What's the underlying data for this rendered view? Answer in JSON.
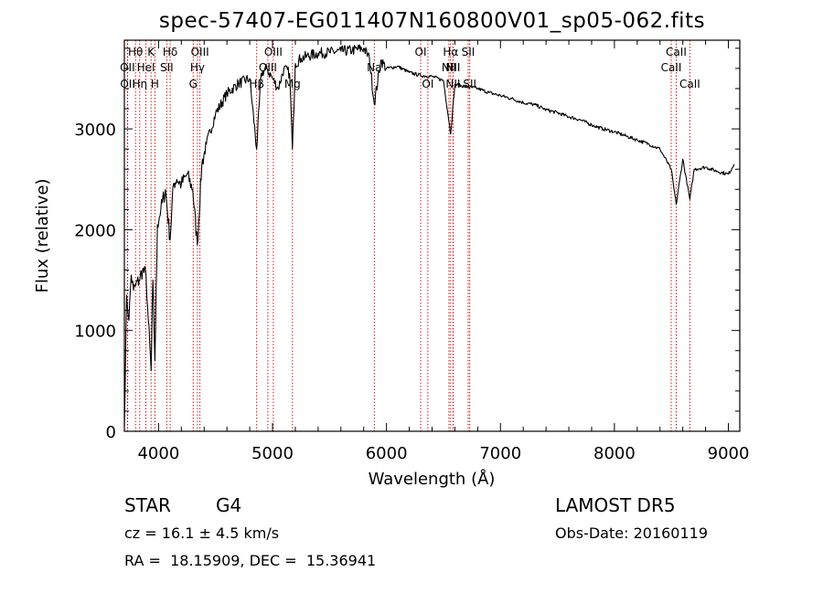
{
  "figure": {
    "title": "spec-57407-EG011407N160800V01_sp05-062.fits",
    "object_class": "STAR",
    "subclass": "G4",
    "survey": "LAMOST DR5",
    "redshift": "cz = 16.1 ± 4.5 km/s",
    "obs_date": "Obs-Date: 20160119",
    "coords": "RA =  18.15909, DEC =  15.36941"
  },
  "chart_data": {
    "type": "line",
    "title": "spec-57407-EG011407N160800V01_sp05-062.fits",
    "xlabel": "Wavelength (Å)",
    "ylabel": "Flux (relative)",
    "xlim": [
      3700,
      9100
    ],
    "ylim": [
      0,
      3880
    ],
    "xticks": [
      4000,
      5000,
      6000,
      7000,
      8000,
      9000
    ],
    "yticks": [
      0,
      1000,
      2000,
      3000
    ],
    "grid": false,
    "line_color": "#000000",
    "marker_color": "#cc0000",
    "series": [
      {
        "x": [
          3700,
          3720,
          3740,
          3760,
          3780,
          3800,
          3830,
          3860,
          3890,
          3910,
          3935,
          3950,
          3968,
          3990,
          4020,
          4060,
          4101,
          4130,
          4160,
          4200,
          4250,
          4300,
          4340,
          4380,
          4420,
          4500,
          4600,
          4700,
          4800,
          4861,
          4900,
          4950,
          5000,
          5050,
          5100,
          5150,
          5175,
          5200,
          5250,
          5300,
          5400,
          5500,
          5600,
          5700,
          5800,
          5850,
          5893,
          5950,
          6000,
          6100,
          6200,
          6300,
          6400,
          6500,
          6563,
          6600,
          6700,
          6800,
          6900,
          7000,
          7100,
          7200,
          7300,
          7400,
          7500,
          7600,
          7700,
          7800,
          7900,
          8000,
          8100,
          8200,
          8300,
          8400,
          8498,
          8542,
          8600,
          8662,
          8700,
          8800,
          8900,
          9000,
          9050
        ],
        "y": [
          50,
          1350,
          1100,
          1550,
          1400,
          1450,
          1500,
          1600,
          1550,
          1100,
          600,
          1500,
          700,
          2050,
          2200,
          2400,
          1900,
          2450,
          2500,
          2450,
          2550,
          2400,
          1850,
          2650,
          2850,
          3150,
          3350,
          3450,
          3500,
          2800,
          3550,
          3600,
          3500,
          3400,
          3600,
          3550,
          2800,
          3650,
          3700,
          3720,
          3750,
          3760,
          3770,
          3780,
          3800,
          3700,
          3250,
          3680,
          3600,
          3620,
          3560,
          3530,
          3520,
          3480,
          2950,
          3440,
          3420,
          3400,
          3360,
          3330,
          3300,
          3260,
          3240,
          3190,
          3160,
          3120,
          3090,
          3040,
          3000,
          2970,
          2930,
          2890,
          2850,
          2800,
          2600,
          2250,
          2700,
          2300,
          2600,
          2620,
          2580,
          2550,
          2650
        ]
      }
    ],
    "lines": [
      {
        "label": "Hθ",
        "x": 3798,
        "row": 0
      },
      {
        "label": "K",
        "x": 3934,
        "row": 0
      },
      {
        "label": "Hδ",
        "x": 4102,
        "row": 0
      },
      {
        "label": "OIII",
        "x": 4363,
        "row": 0
      },
      {
        "label": "OIII",
        "x": 5007,
        "row": 0
      },
      {
        "label": "OI",
        "x": 6300,
        "row": 0
      },
      {
        "label": "Hα",
        "x": 6563,
        "row": 0
      },
      {
        "label": "SII",
        "x": 6717,
        "row": 0
      },
      {
        "label": "CaII",
        "x": 8542,
        "row": 0
      },
      {
        "label": "OII",
        "x": 3727,
        "row": 1
      },
      {
        "label": "HeI",
        "x": 3889,
        "row": 1
      },
      {
        "label": "SII",
        "x": 4072,
        "row": 1
      },
      {
        "label": "Hγ",
        "x": 4341,
        "row": 1
      },
      {
        "label": "OIII",
        "x": 4959,
        "row": 1
      },
      {
        "label": "Na",
        "x": 5893,
        "row": 1
      },
      {
        "label": "NII",
        "x": 6548,
        "row": 1
      },
      {
        "label": "NII",
        "x": 6584,
        "row": 1
      },
      {
        "label": "CaII",
        "x": 8498,
        "row": 1
      },
      {
        "label": "OII",
        "x": 3729,
        "row": 2
      },
      {
        "label": "Hη",
        "x": 3835,
        "row": 2
      },
      {
        "label": "H",
        "x": 3968,
        "row": 2
      },
      {
        "label": "G",
        "x": 4304,
        "row": 2
      },
      {
        "label": "Hβ",
        "x": 4861,
        "row": 2
      },
      {
        "label": "Mg",
        "x": 5175,
        "row": 2
      },
      {
        "label": "OI",
        "x": 6363,
        "row": 2
      },
      {
        "label": "NII",
        "x": 6584,
        "row": 2
      },
      {
        "label": "SII",
        "x": 6731,
        "row": 2
      },
      {
        "label": "CaII",
        "x": 8662,
        "row": 2
      }
    ]
  }
}
